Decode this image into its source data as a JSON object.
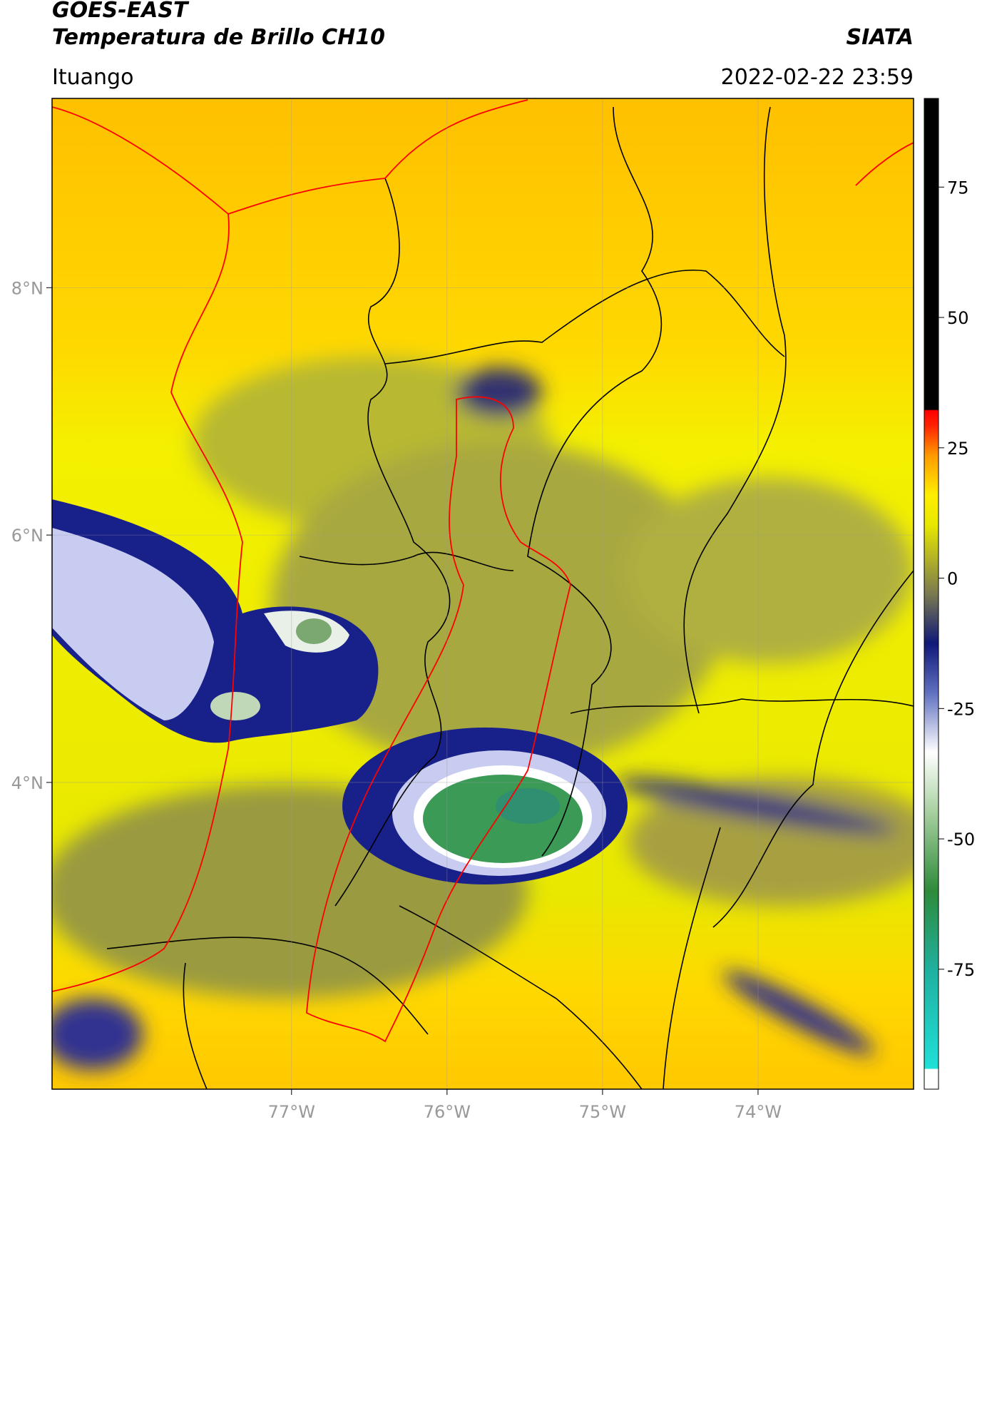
{
  "chart_data": {
    "type": "map",
    "title": "GOES-EAST",
    "subtitle": "Temperatura de Brillo CH10",
    "source": "SIATA",
    "region": "Ituango",
    "date": "2022-02-22 23:59",
    "xlim": [
      -78.54,
      -73.0
    ],
    "ylim": [
      1.52,
      9.53
    ],
    "xticks": [
      {
        "value": -77,
        "label": "77°W"
      },
      {
        "value": -76,
        "label": "76°W"
      },
      {
        "value": -75,
        "label": "75°W"
      },
      {
        "value": -74,
        "label": "74°W"
      }
    ],
    "yticks": [
      {
        "value": 8,
        "label": "8°N"
      },
      {
        "value": 6,
        "label": "6°N"
      },
      {
        "value": 4,
        "label": "4°N"
      }
    ],
    "clim": [
      -98,
      92
    ],
    "cticks": [
      75,
      50,
      25,
      0,
      -25,
      -50,
      -75
    ],
    "grid": true
  }
}
